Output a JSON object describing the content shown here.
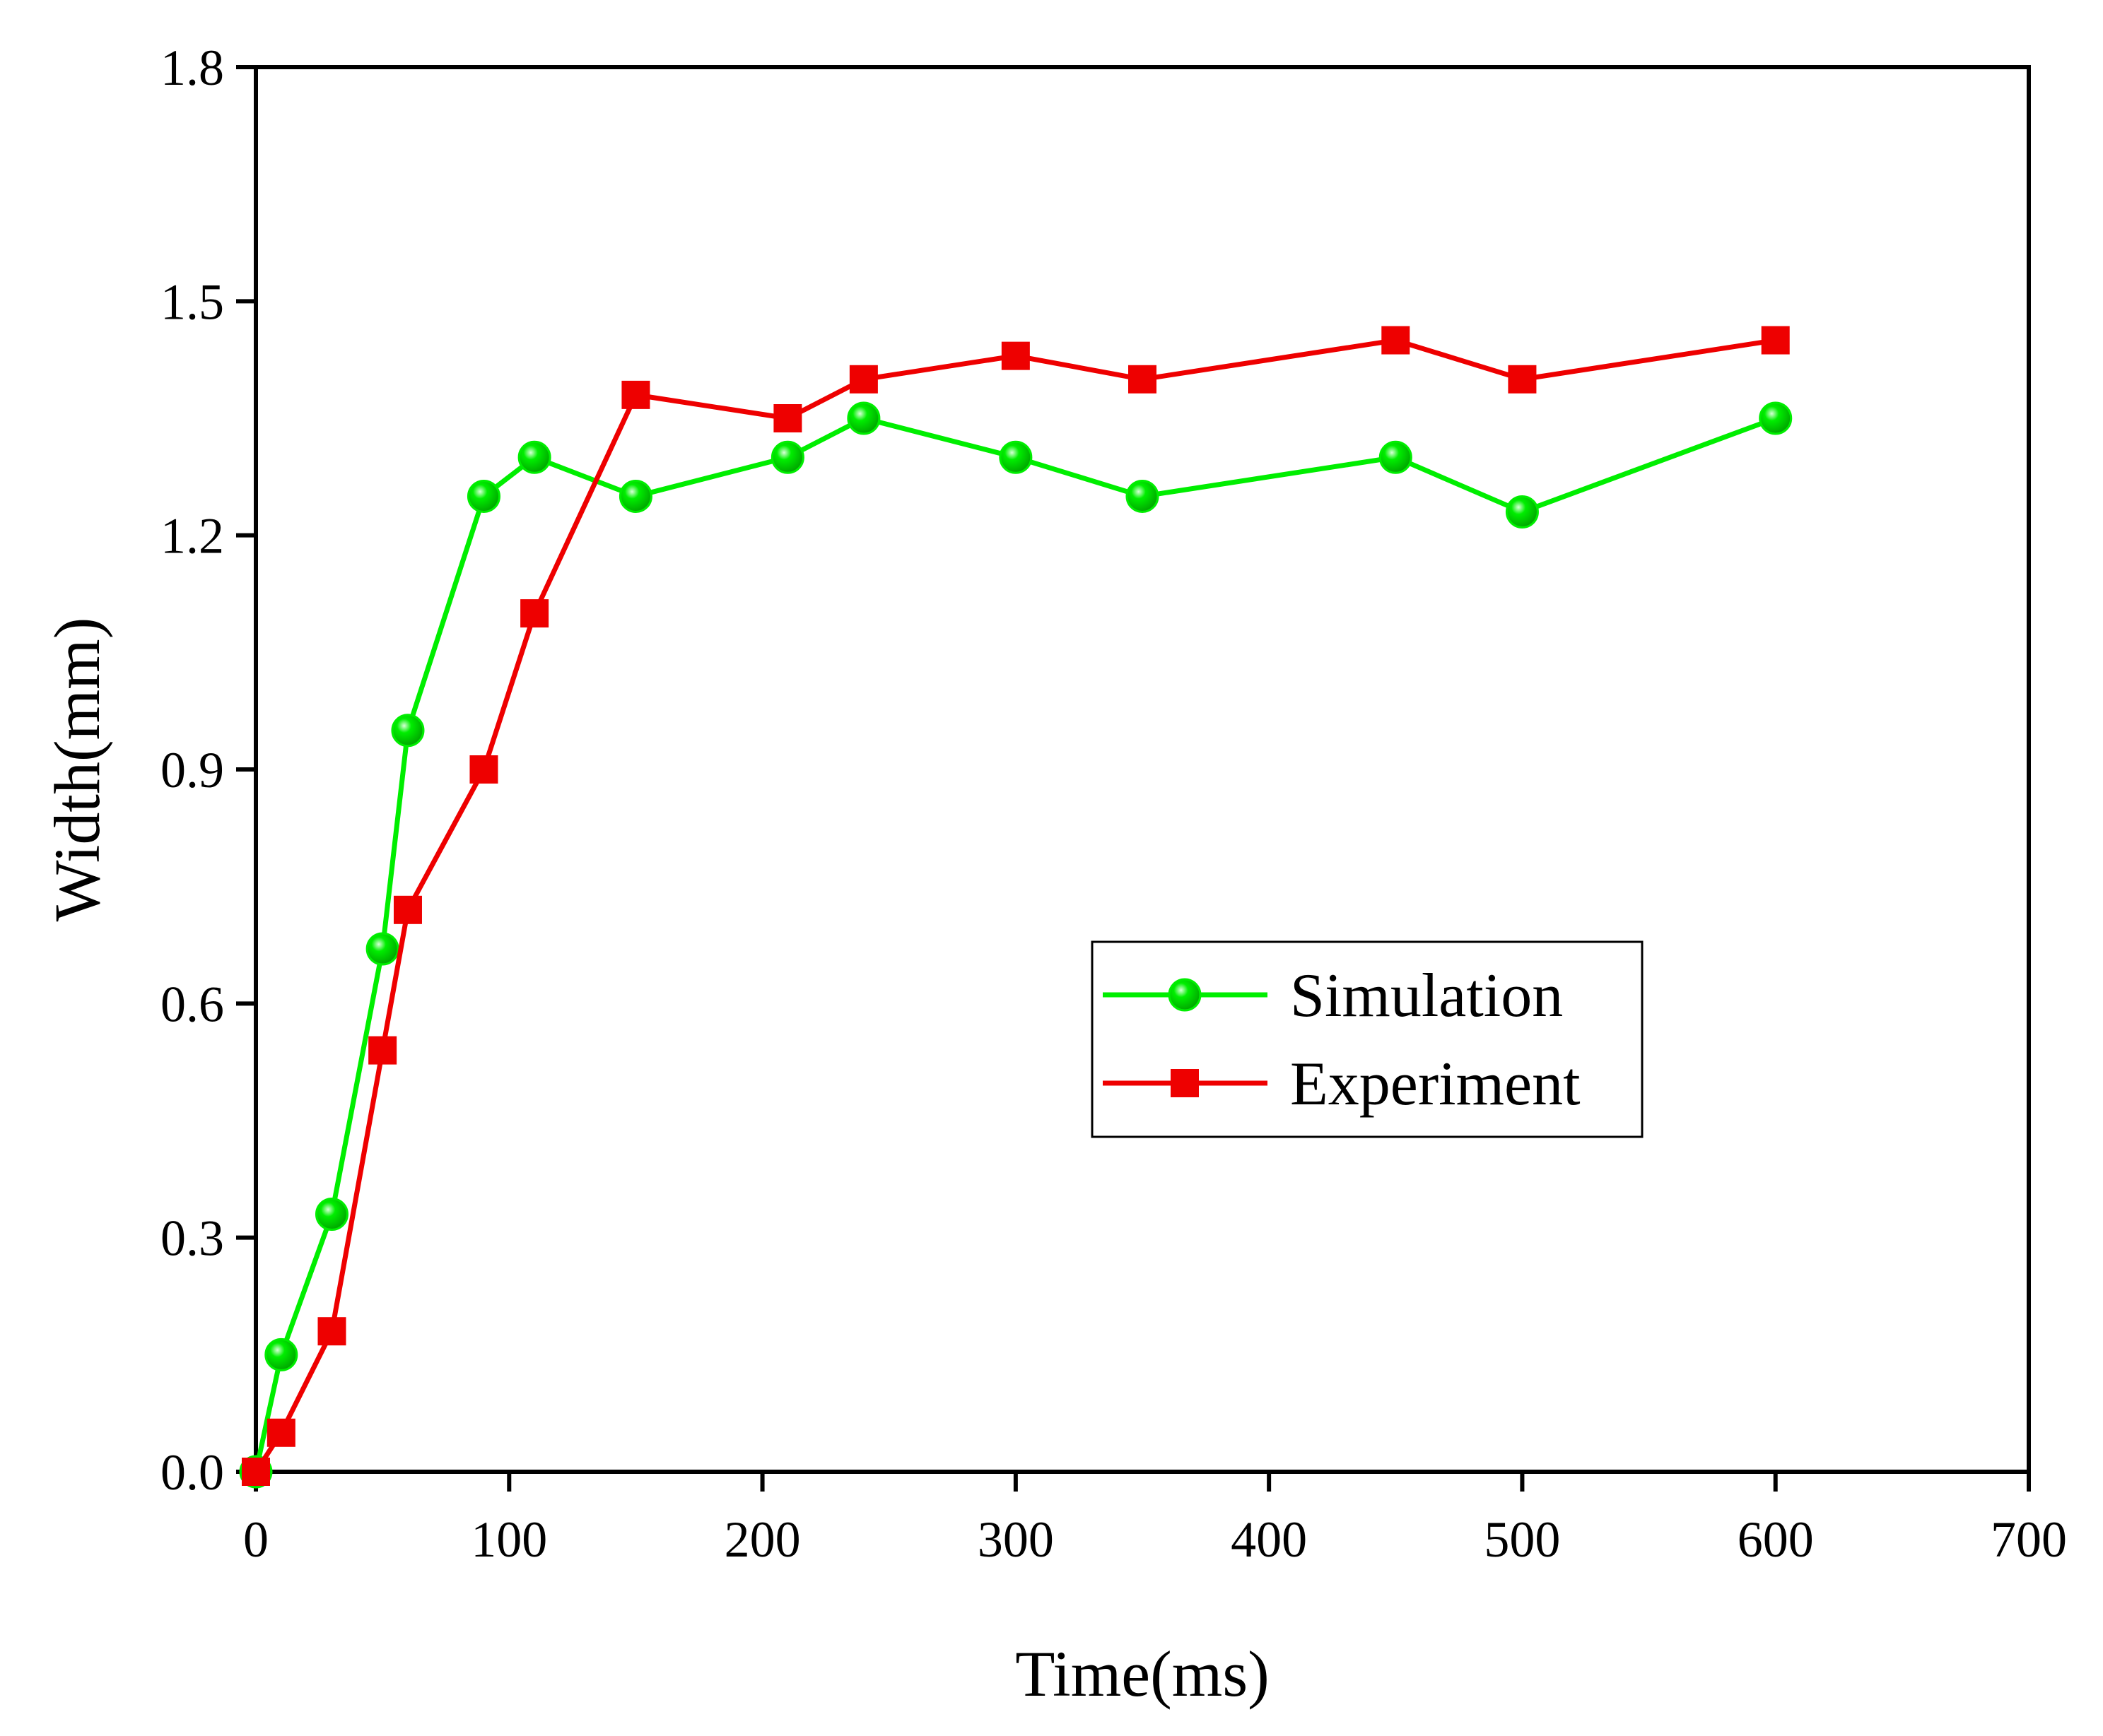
{
  "chart_data": {
    "type": "line",
    "title": "",
    "xlabel": "Time(ms)",
    "ylabel": "Width(mm)",
    "xlim": [
      0,
      700
    ],
    "ylim": [
      0,
      1.8
    ],
    "xticks": [
      0,
      100,
      200,
      300,
      400,
      500,
      600,
      700
    ],
    "yticks": [
      0.0,
      0.3,
      0.6,
      0.9,
      1.2,
      1.5,
      1.8
    ],
    "xtick_labels": [
      "0",
      "100",
      "200",
      "300",
      "400",
      "500",
      "600",
      "700"
    ],
    "ytick_labels": [
      "0.0",
      "0.3",
      "0.6",
      "0.9",
      "1.2",
      "1.5",
      "1.8"
    ],
    "grid": false,
    "legend_position": "center-right",
    "series": [
      {
        "name": "Simulation",
        "color": "#00ee00",
        "marker": "circle",
        "x": [
          0,
          10,
          30,
          50,
          60,
          90,
          110,
          150,
          210,
          240,
          300,
          350,
          450,
          500,
          600
        ],
        "y": [
          0.0,
          0.15,
          0.33,
          0.67,
          0.95,
          1.25,
          1.3,
          1.25,
          1.3,
          1.35,
          1.3,
          1.25,
          1.3,
          1.23,
          1.35
        ]
      },
      {
        "name": "Experiment",
        "color": "#ee0000",
        "marker": "square",
        "x": [
          0,
          10,
          30,
          50,
          60,
          90,
          110,
          150,
          210,
          240,
          300,
          350,
          450,
          500,
          600
        ],
        "y": [
          0.0,
          0.05,
          0.18,
          0.54,
          0.72,
          0.9,
          1.1,
          1.38,
          1.35,
          1.4,
          1.43,
          1.4,
          1.45,
          1.4,
          1.45
        ]
      }
    ]
  }
}
